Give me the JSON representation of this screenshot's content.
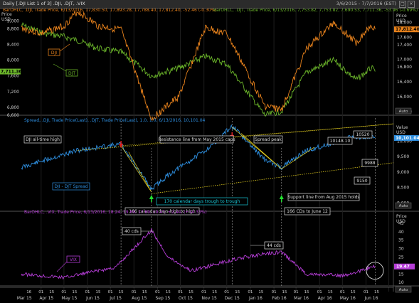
{
  "window": {
    "title": "Daily [.DJI List 1 of 3] .DJI, .DJT, .VIX",
    "date_range": "3/6/2015 - 7/7/2016 (EST)"
  },
  "top_panel": {
    "legend_dji": "BarOHLC, .DJI, Trade Price, 6/13/2016, 17,830.50, 17,893.28, 17,788.40, 17,812.40, -52.46 (-0.30%)",
    "legend_djt": "BarOHLC, .DJT, Trade Price, 6/13/2016, 7,753.82, 7,753.82, 7,690.53, 7,711.36, -53.96 (-0.69%)",
    "axis_title_left": [
      "Price",
      "USD"
    ],
    "axis_title_right": [
      "Price",
      "USD"
    ],
    "left_ticks": [
      "9,000",
      "8,800",
      "8,400",
      "8,000",
      "7,600",
      "7,200",
      "6,800",
      "6,600"
    ],
    "right_ticks": [
      "18,000",
      "17,600",
      "17,400",
      "17,000",
      "16,800",
      "16,400",
      "16,000",
      "15,600"
    ],
    "badge_djt": "7,711.36",
    "badge_dji": "17,812.40",
    "label_dji": "DJI",
    "label_djt": "DJT",
    "auto": "Auto"
  },
  "mid_panel": {
    "legend": "Spread, .DJI, Trade Price(Last), .DJT, Trade Price(Last),  1.0,  1.0,  6/13/2016, 10,101.04",
    "axis_title_right": [
      "Value",
      "USD"
    ],
    "right_ticks": [
      "10,000",
      "9,500",
      "9,000",
      "8,500",
      "8,000"
    ],
    "badge": "10,101.04",
    "series_label": "DJI - DJT Spread",
    "annotations": {
      "dji_ath": "DJI all-time high",
      "resistance": "Resistance line from May 2015 caps",
      "spread_peak": "Spread peak",
      "v10520": "10520",
      "v10148": "10148.10",
      "v9988": "9988",
      "v9150": "9150",
      "trough": "170 calendar days trough to trough",
      "support": "Support line from Aug 2015 holds",
      "high_to_high": "166 calendar days high to high",
      "cds_june": "166 CDs to June 12"
    },
    "auto": "Auto"
  },
  "bottom_panel": {
    "legend": "BarOHLC, .VIX, Trade Price, 6/13/2016, 18.24, 19.69, 17.89, 19.47, +2.44, (+14.33%)",
    "axis_title_right": [
      "Price",
      "USD"
    ],
    "right_ticks": [
      "45",
      "40",
      "35",
      "30",
      "25",
      "20",
      "15",
      "10"
    ],
    "badge": "19.47",
    "series_label": "VIX",
    "note_40": "40 cds",
    "note_44": "44 cds",
    "auto": "Auto"
  },
  "x_axis": {
    "month_labels": [
      "Mar 15",
      "Apr 15",
      "May 15",
      "Jun 15",
      "Jul 15",
      "Aug 15",
      "Sep 15",
      "Oct 15",
      "Nov 15",
      "Dec 15",
      "Jan 16",
      "Feb 16",
      "Mar 16",
      "Apr 16",
      "May 16",
      "Jun 16"
    ],
    "day_labels": [
      "16",
      "01",
      "15",
      "01",
      "15",
      "01",
      "15",
      "01",
      "15",
      "01",
      "15",
      "01",
      "15",
      "01",
      "15",
      "01",
      "15",
      "01",
      "15",
      "01",
      "15",
      "01",
      "15",
      "01",
      "15",
      "01",
      "15",
      "01",
      "15",
      "01",
      "15"
    ]
  },
  "colors": {
    "dji": "#e8821c",
    "djt": "#6bb52a",
    "spread": "#2e8fe0",
    "vix": "#b53dd6",
    "annotation_line": "#e6d020",
    "trough_box": "#18c8d8",
    "arrow_up": "#22e030",
    "arrow_down": "#e02020"
  },
  "chart_data": [
    {
      "type": "line",
      "title": "",
      "series": [
        {
          "name": ".DJI",
          "x": [
            "2015-03-06",
            "2015-04-01",
            "2015-05-01",
            "2015-05-19",
            "2015-06-15",
            "2015-07-15",
            "2015-08-24",
            "2015-09-29",
            "2015-11-03",
            "2015-12-01",
            "2016-01-20",
            "2016-02-11",
            "2016-03-15",
            "2016-04-20",
            "2016-05-19",
            "2016-06-08",
            "2016-06-13"
          ],
          "values": [
            17850,
            17700,
            17900,
            18300,
            17900,
            17800,
            15400,
            16000,
            17850,
            17700,
            15750,
            15650,
            17300,
            18000,
            17450,
            17950,
            17812.4
          ]
        },
        {
          "name": ".DJT",
          "x": [
            "2015-03-06",
            "2015-04-01",
            "2015-05-01",
            "2015-05-19",
            "2015-06-15",
            "2015-07-15",
            "2015-08-24",
            "2015-09-29",
            "2015-11-03",
            "2015-12-01",
            "2016-01-20",
            "2016-02-11",
            "2016-03-15",
            "2016-04-20",
            "2016-05-19",
            "2016-06-08",
            "2016-06-13"
          ],
          "values": [
            8900,
            8700,
            8600,
            8500,
            8300,
            8200,
            7600,
            7800,
            8100,
            7900,
            6600,
            6700,
            7700,
            8000,
            7500,
            7800,
            7711.36
          ]
        }
      ],
      "ylabel": "Price USD",
      "ylim_left": [
        6600,
        9150
      ],
      "ylim_right": [
        15500,
        18200
      ]
    },
    {
      "type": "line",
      "title": "",
      "series": [
        {
          "name": "",
          "x": [
            "2015-03-06",
            "2015-04-01",
            "2015-05-19",
            "2015-07-15",
            "2015-08-24",
            "2015-09-15",
            "2015-11-03",
            "2015-12-08",
            "2016-01-20",
            "2016-02-11",
            "2016-03-15",
            "2016-04-20",
            "2016-05-15",
            "2016-06-13"
          ],
          "values": [
            9150,
            9350,
            9700,
            9900,
            8450,
            8900,
            9700,
            10480,
            9400,
            9150,
            9700,
            9950,
            10148.1,
            10101.04
          ]
        }
      ],
      "ylabel": "Value USD",
      "ylim": [
        7800,
        10700
      ]
    },
    {
      "type": "line",
      "title": "",
      "series": [
        {
          "name": "",
          "x": [
            "2015-03-06",
            "2015-05-01",
            "2015-07-08",
            "2015-08-24",
            "2015-09-15",
            "2015-10-15",
            "2015-12-14",
            "2016-01-20",
            "2016-02-11",
            "2016-03-15",
            "2016-05-01",
            "2016-06-13"
          ],
          "values": [
            15,
            13,
            19,
            41,
            25,
            17,
            24,
            27,
            28,
            15,
            14,
            19.47
          ]
        }
      ],
      "ylabel": "Price USD",
      "ylim": [
        8,
        50
      ]
    }
  ]
}
